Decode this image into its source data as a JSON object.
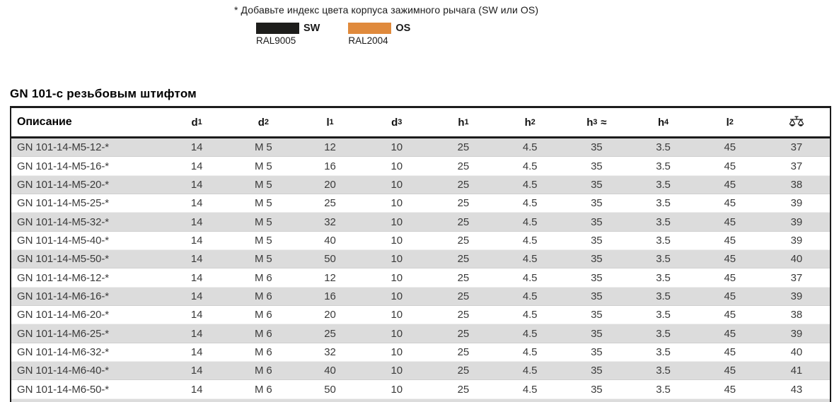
{
  "note": {
    "text": "* Добавьте индекс цвета корпуса зажимного рычага (SW или OS)",
    "colors": [
      {
        "code": "SW",
        "ral": "RAL9005",
        "hex": "#1d1d1b"
      },
      {
        "code": "OS",
        "ral": "RAL2004",
        "hex": "#e08a3c"
      }
    ]
  },
  "table": {
    "title": "GN 101-с резьбовым штифтом",
    "columns": [
      {
        "base": "Описание",
        "sub": "",
        "suffix": ""
      },
      {
        "base": "d",
        "sub": "1",
        "suffix": ""
      },
      {
        "base": "d",
        "sub": "2",
        "suffix": ""
      },
      {
        "base": "l",
        "sub": "1",
        "suffix": ""
      },
      {
        "base": "d",
        "sub": "3",
        "suffix": ""
      },
      {
        "base": "h",
        "sub": "1",
        "suffix": ""
      },
      {
        "base": "h",
        "sub": "2",
        "suffix": ""
      },
      {
        "base": "h",
        "sub": "3",
        "suffix": "≈"
      },
      {
        "base": "h",
        "sub": "4",
        "suffix": ""
      },
      {
        "base": "l",
        "sub": "2",
        "suffix": ""
      },
      {
        "base": "",
        "sub": "",
        "suffix": "",
        "icon": "weight-scale-icon"
      }
    ],
    "rows": [
      [
        "GN 101-14-M5-12-*",
        "14",
        "M 5",
        "12",
        "10",
        "25",
        "4.5",
        "35",
        "3.5",
        "45",
        "37"
      ],
      [
        "GN 101-14-M5-16-*",
        "14",
        "M 5",
        "16",
        "10",
        "25",
        "4.5",
        "35",
        "3.5",
        "45",
        "37"
      ],
      [
        "GN 101-14-M5-20-*",
        "14",
        "M 5",
        "20",
        "10",
        "25",
        "4.5",
        "35",
        "3.5",
        "45",
        "38"
      ],
      [
        "GN 101-14-M5-25-*",
        "14",
        "M 5",
        "25",
        "10",
        "25",
        "4.5",
        "35",
        "3.5",
        "45",
        "39"
      ],
      [
        "GN 101-14-M5-32-*",
        "14",
        "M 5",
        "32",
        "10",
        "25",
        "4.5",
        "35",
        "3.5",
        "45",
        "39"
      ],
      [
        "GN 101-14-M5-40-*",
        "14",
        "M 5",
        "40",
        "10",
        "25",
        "4.5",
        "35",
        "3.5",
        "45",
        "39"
      ],
      [
        "GN 101-14-M5-50-*",
        "14",
        "M 5",
        "50",
        "10",
        "25",
        "4.5",
        "35",
        "3.5",
        "45",
        "40"
      ],
      [
        "GN 101-14-M6-12-*",
        "14",
        "M 6",
        "12",
        "10",
        "25",
        "4.5",
        "35",
        "3.5",
        "45",
        "37"
      ],
      [
        "GN 101-14-M6-16-*",
        "14",
        "M 6",
        "16",
        "10",
        "25",
        "4.5",
        "35",
        "3.5",
        "45",
        "39"
      ],
      [
        "GN 101-14-M6-20-*",
        "14",
        "M 6",
        "20",
        "10",
        "25",
        "4.5",
        "35",
        "3.5",
        "45",
        "38"
      ],
      [
        "GN 101-14-M6-25-*",
        "14",
        "M 6",
        "25",
        "10",
        "25",
        "4.5",
        "35",
        "3.5",
        "45",
        "39"
      ],
      [
        "GN 101-14-M6-32-*",
        "14",
        "M 6",
        "32",
        "10",
        "25",
        "4.5",
        "35",
        "3.5",
        "45",
        "40"
      ],
      [
        "GN 101-14-M6-40-*",
        "14",
        "M 6",
        "40",
        "10",
        "25",
        "4.5",
        "35",
        "3.5",
        "45",
        "41"
      ],
      [
        "GN 101-14-M6-50-*",
        "14",
        "M 6",
        "50",
        "10",
        "25",
        "4.5",
        "35",
        "3.5",
        "45",
        "43"
      ]
    ]
  }
}
